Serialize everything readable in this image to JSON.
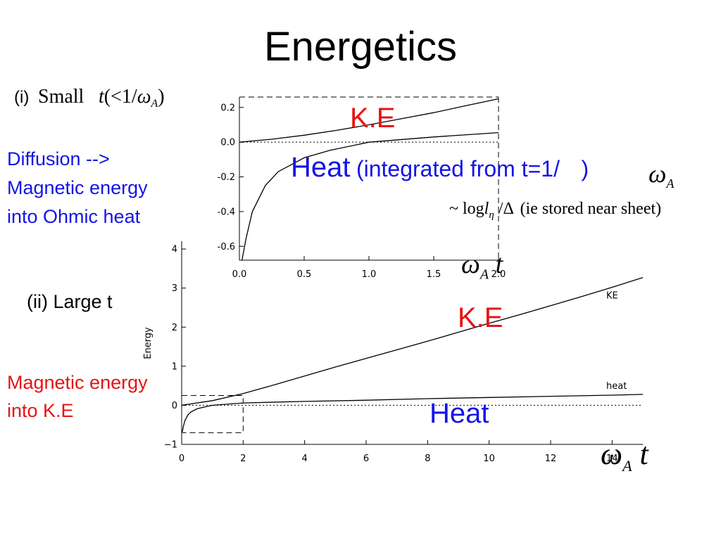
{
  "slide": {
    "title": "Energetics",
    "small_case": {
      "prefix": "(i)",
      "math_word": "Small",
      "math_var": "t",
      "math_cond": "(<1/",
      "omega": "ω",
      "sub_A": "A",
      "close": ")"
    },
    "left_blue": [
      "Diffusion -->",
      "Magnetic energy",
      "into Ohmic heat"
    ],
    "large_case": "(ii) Large t",
    "left_red": [
      "Magnetic energy",
      "into K.E"
    ],
    "ke_label_top": "K.E",
    "heat_big": "Heat",
    "heat_note": "(integrated from t=1/",
    "heat_note_close": ")",
    "omega_top": "ω",
    "omega_top_sub": "A",
    "log_expr": {
      "tilde_log": "~ log",
      "l": "l",
      "eta": "η",
      "rest": "/Δ",
      "paren": "(ie stored near sheet)"
    },
    "inset_xaxis_omega": "ω",
    "inset_xaxis_sub": "A",
    "inset_xaxis_t": "t",
    "ke_label_main": "K.E",
    "heat_label_main": "Heat",
    "main_xaxis_omega": "ω",
    "main_xaxis_sub": "A",
    "main_xaxis_t": "t"
  },
  "chart_data": [
    {
      "type": "line",
      "title": "",
      "xlabel": "",
      "ylabel": "",
      "xlim": [
        0,
        2.0
      ],
      "ylim": [
        -0.68,
        0.26
      ],
      "xticks": [
        "0.0",
        "0.5",
        "1.0",
        "1.5",
        "2.0"
      ],
      "yticks": [
        "-0.6",
        "-0.4",
        "-0.2",
        "0.0",
        "0.2"
      ],
      "grid": false,
      "reference_line": {
        "y": 0,
        "style": "dotted"
      },
      "series": [
        {
          "x": [
            0,
            0.25,
            0.5,
            0.75,
            1.0,
            1.25,
            1.5,
            1.75,
            2.0
          ],
          "y": [
            0,
            0.017,
            0.04,
            0.068,
            0.1,
            0.135,
            0.17,
            0.21,
            0.25
          ]
        },
        {
          "x": [
            0.02,
            0.05,
            0.1,
            0.2,
            0.3,
            0.5,
            0.7,
            1.0,
            1.5,
            2.0
          ],
          "y": [
            -0.68,
            -0.56,
            -0.4,
            -0.25,
            -0.17,
            -0.09,
            -0.047,
            0.0,
            0.03,
            0.055
          ]
        }
      ]
    },
    {
      "type": "line",
      "title": "",
      "xlabel": "",
      "ylabel": "Energy",
      "xlim": [
        0,
        15
      ],
      "ylim": [
        -1,
        4.2
      ],
      "xticks": [
        "0",
        "2",
        "4",
        "6",
        "8",
        "10",
        "12",
        "14"
      ],
      "yticks": [
        "−1",
        "0",
        "1",
        "2",
        "3",
        "4"
      ],
      "grid": false,
      "reference_line": {
        "y": 0,
        "style": "dotted"
      },
      "series": [
        {
          "name": "KE",
          "x": [
            0,
            1,
            2,
            3,
            4,
            5,
            6,
            7,
            8,
            9,
            10,
            11,
            12,
            13,
            14,
            15
          ],
          "y": [
            0,
            0.12,
            0.3,
            0.52,
            0.75,
            0.98,
            1.2,
            1.42,
            1.64,
            1.87,
            2.1,
            2.32,
            2.55,
            2.78,
            3.02,
            3.27
          ]
        },
        {
          "name": "heat",
          "x": [
            0.02,
            0.05,
            0.1,
            0.2,
            0.3,
            0.5,
            0.7,
            1.0,
            2,
            4,
            6,
            8,
            10,
            12,
            14,
            15
          ],
          "y": [
            -0.68,
            -0.56,
            -0.4,
            -0.25,
            -0.17,
            -0.09,
            -0.05,
            0.0,
            0.06,
            0.1,
            0.13,
            0.17,
            0.2,
            0.23,
            0.26,
            0.28
          ]
        }
      ],
      "inset_region": {
        "x": [
          0,
          2
        ],
        "y": [
          -0.7,
          0.25
        ]
      }
    }
  ]
}
